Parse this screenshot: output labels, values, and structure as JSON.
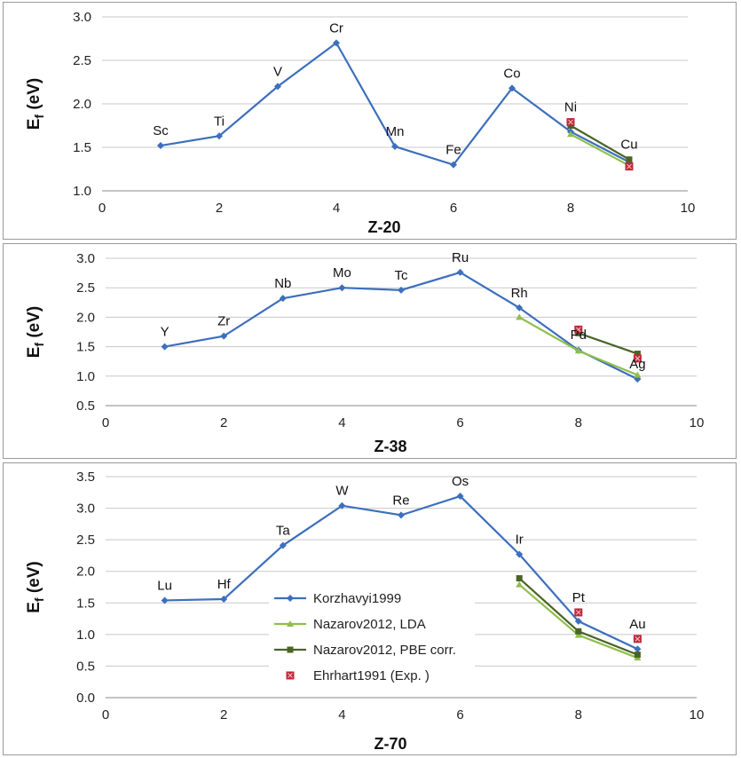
{
  "series_legend": [
    {
      "name": "Korzhavyi1999",
      "color": "#3c6fbd",
      "marker": "diamond"
    },
    {
      "name": "Nazarov2012, LDA",
      "color": "#8fbe4b",
      "marker": "triangle"
    },
    {
      "name": "Nazarov2012, PBE corr.",
      "color": "#4a6425",
      "marker": "square"
    },
    {
      "name": "Ehrhart1991 (Exp. )",
      "color": "#c0283a",
      "marker": "square-x"
    }
  ],
  "chart_data": [
    {
      "type": "line",
      "title": "",
      "xlabel": "Z-20",
      "ylabel": "E_f (eV)",
      "ylabel_main": "E",
      "ylabel_sub": "f",
      "ylabel_rest": " (eV)",
      "xlim": [
        0,
        10
      ],
      "ylim": [
        1.0,
        3.0
      ],
      "xticks": [
        0,
        2,
        4,
        6,
        8,
        10
      ],
      "yticks": [
        1.0,
        1.5,
        2.0,
        2.5,
        3.0
      ],
      "ytick_labels": [
        "1.0",
        "1.5",
        "2.0",
        "2.5",
        "3.0"
      ],
      "grid": "horizontal",
      "element_labels": [
        {
          "text": "Sc",
          "x": 1,
          "y": 1.52
        },
        {
          "text": "Ti",
          "x": 2,
          "y": 1.63
        },
        {
          "text": "V",
          "x": 3,
          "y": 2.2
        },
        {
          "text": "Cr",
          "x": 4,
          "y": 2.7
        },
        {
          "text": "Mn",
          "x": 5,
          "y": 1.51
        },
        {
          "text": "Fe",
          "x": 6,
          "y": 1.3
        },
        {
          "text": "Co",
          "x": 7,
          "y": 2.18
        },
        {
          "text": "Ni",
          "x": 8,
          "y": 1.79
        },
        {
          "text": "Cu",
          "x": 9,
          "y": 1.36
        }
      ],
      "series": [
        {
          "name": "Korzhavyi1999",
          "x": [
            1,
            2,
            3,
            4,
            5,
            6,
            7,
            8,
            9
          ],
          "y": [
            1.52,
            1.63,
            2.2,
            2.7,
            1.51,
            1.3,
            2.18,
            1.68,
            1.33
          ]
        },
        {
          "name": "Nazarov2012, LDA",
          "x": [
            8,
            9
          ],
          "y": [
            1.65,
            1.29
          ]
        },
        {
          "name": "Nazarov2012, PBE corr.",
          "x": [
            8,
            9
          ],
          "y": [
            1.75,
            1.36
          ]
        },
        {
          "name": "Ehrhart1991 (Exp. )",
          "x": [
            8,
            9
          ],
          "y": [
            1.79,
            1.28
          ]
        }
      ]
    },
    {
      "type": "line",
      "title": "",
      "xlabel": "Z-38",
      "ylabel": "E_f (eV)",
      "ylabel_main": "E",
      "ylabel_sub": "f",
      "ylabel_rest": " (eV)",
      "xlim": [
        0,
        10
      ],
      "ylim": [
        0.5,
        3.0
      ],
      "xticks": [
        0,
        2,
        4,
        6,
        8,
        10
      ],
      "yticks": [
        0.5,
        1.0,
        1.5,
        2.0,
        2.5,
        3.0
      ],
      "ytick_labels": [
        "0.5",
        "1.0",
        "1.5",
        "2.0",
        "2.5",
        "3.0"
      ],
      "grid": "horizontal",
      "element_labels": [
        {
          "text": "Y",
          "x": 1,
          "y": 1.5
        },
        {
          "text": "Zr",
          "x": 2,
          "y": 1.68
        },
        {
          "text": "Nb",
          "x": 3,
          "y": 2.32
        },
        {
          "text": "Mo",
          "x": 4,
          "y": 2.5
        },
        {
          "text": "Tc",
          "x": 5,
          "y": 2.46
        },
        {
          "text": "Ru",
          "x": 6,
          "y": 2.76
        },
        {
          "text": "Rh",
          "x": 7,
          "y": 2.16
        },
        {
          "text": "Pd",
          "x": 8,
          "y": 1.45
        },
        {
          "text": "Ag",
          "x": 9,
          "y": 0.95
        }
      ],
      "series": [
        {
          "name": "Korzhavyi1999",
          "x": [
            1,
            2,
            3,
            4,
            5,
            6,
            7,
            8,
            9
          ],
          "y": [
            1.5,
            1.68,
            2.32,
            2.5,
            2.46,
            2.76,
            2.16,
            1.44,
            0.95
          ]
        },
        {
          "name": "Nazarov2012, LDA",
          "x": [
            7,
            8,
            9
          ],
          "y": [
            2.0,
            1.43,
            1.02
          ]
        },
        {
          "name": "Nazarov2012, PBE corr.",
          "x": [
            8,
            9
          ],
          "y": [
            1.73,
            1.38
          ]
        },
        {
          "name": "Ehrhart1991 (Exp. )",
          "x": [
            8,
            9
          ],
          "y": [
            1.79,
            1.3
          ]
        }
      ]
    },
    {
      "type": "line",
      "title": "",
      "xlabel": "Z-70",
      "ylabel": "E_f (eV)",
      "ylabel_main": "E",
      "ylabel_sub": "f",
      "ylabel_rest": " (eV)",
      "xlim": [
        0,
        10
      ],
      "ylim": [
        0.0,
        3.5
      ],
      "xticks": [
        0,
        2,
        4,
        6,
        8,
        10
      ],
      "yticks": [
        0.0,
        0.5,
        1.0,
        1.5,
        2.0,
        2.5,
        3.0,
        3.5
      ],
      "ytick_labels": [
        "0.0",
        "0.5",
        "1.0",
        "1.5",
        "2.0",
        "2.5",
        "3.0",
        "3.5"
      ],
      "grid": "horizontal",
      "legend_position": "lower-center",
      "element_labels": [
        {
          "text": "Lu",
          "x": 1,
          "y": 1.54
        },
        {
          "text": "Hf",
          "x": 2,
          "y": 1.56
        },
        {
          "text": "Ta",
          "x": 3,
          "y": 2.41
        },
        {
          "text": "W",
          "x": 4,
          "y": 3.04
        },
        {
          "text": "Re",
          "x": 5,
          "y": 2.89
        },
        {
          "text": "Os",
          "x": 6,
          "y": 3.19
        },
        {
          "text": "Ir",
          "x": 7,
          "y": 2.27
        },
        {
          "text": "Pt",
          "x": 8,
          "y": 1.35
        },
        {
          "text": "Au",
          "x": 9,
          "y": 0.93
        }
      ],
      "series": [
        {
          "name": "Korzhavyi1999",
          "x": [
            1,
            2,
            3,
            4,
            5,
            6,
            7,
            8,
            9
          ],
          "y": [
            1.54,
            1.56,
            2.41,
            3.04,
            2.89,
            3.19,
            2.27,
            1.21,
            0.77
          ]
        },
        {
          "name": "Nazarov2012, LDA",
          "x": [
            7,
            8,
            9
          ],
          "y": [
            1.79,
            0.99,
            0.63
          ]
        },
        {
          "name": "Nazarov2012, PBE corr.",
          "x": [
            7,
            8,
            9
          ],
          "y": [
            1.89,
            1.05,
            0.68
          ]
        },
        {
          "name": "Ehrhart1991 (Exp. )",
          "x": [
            8,
            9
          ],
          "y": [
            1.35,
            0.93
          ]
        }
      ]
    }
  ]
}
